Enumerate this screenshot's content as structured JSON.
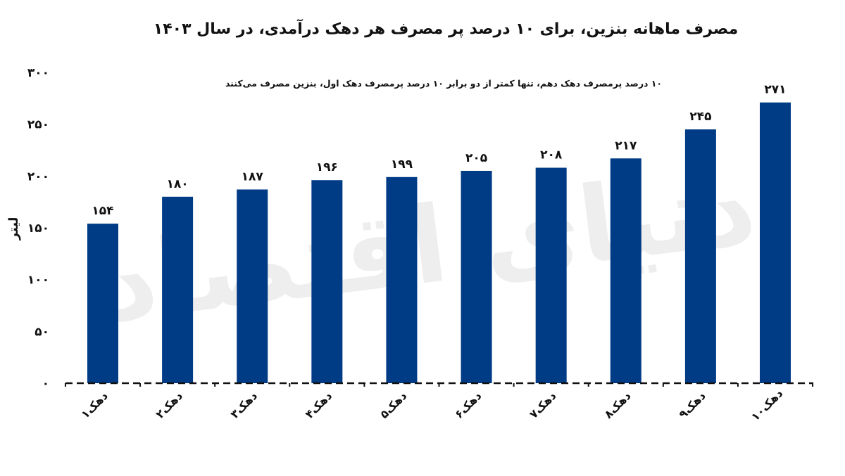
{
  "chart_data": {
    "type": "bar",
    "title": "مصرف ماهانه بنزین، برای ۱۰ درصد پر مصرف هر دهک درآمدی، در سال ۱۴۰۳",
    "subtitle": "۱۰ درصد پرمصرف دهک دهم، تنها کمتر از دو برابر ۱۰ درصد پرمصرف دهک اول، بنزین مصرف می‌کنند",
    "ylabel": "لیتر",
    "xlabel": "",
    "ylim": [
      0,
      300
    ],
    "yticks": [
      0,
      50,
      100,
      150,
      200,
      250,
      300
    ],
    "ytick_labels": [
      "۰",
      "۵۰",
      "۱۰۰",
      "۱۵۰",
      "۲۰۰",
      "۲۵۰",
      "۳۰۰"
    ],
    "categories": [
      "دهک۱",
      "دهک۲",
      "دهک۳",
      "دهک۴",
      "دهک۵",
      "دهک۶",
      "دهک۷",
      "دهک۸",
      "دهک۹",
      "دهک۱۰"
    ],
    "values": [
      154,
      180,
      187,
      196,
      199,
      205,
      208,
      217,
      245,
      271
    ],
    "value_labels": [
      "۱۵۴",
      "۱۸۰",
      "۱۸۷",
      "۱۹۶",
      "۱۹۹",
      "۲۰۵",
      "۲۰۸",
      "۲۱۷",
      "۲۴۵",
      "۲۷۱"
    ],
    "bar_color": "#003b86",
    "text_color": "#111111",
    "axis_color": "#111111",
    "grid": false,
    "legend": false
  },
  "watermark": {
    "text": "دنیای اقتصاد",
    "color": "#eeeeee"
  }
}
